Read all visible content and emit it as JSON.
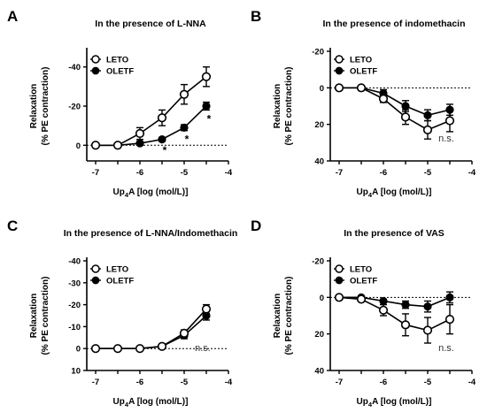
{
  "chart_data": [
    {
      "type": "line",
      "panel": "A",
      "title": "In the presence of L-NNA",
      "ylabel_line1": "Relaxation",
      "ylabel_line2": "(% PE contraction)",
      "xlabel_main": "Up",
      "xlabel_sub": "4",
      "xlabel_rest": "A [log (mol/L)]",
      "x_ticks": [
        -7,
        -6,
        -5,
        -4
      ],
      "x_tick_labels": [
        "-7",
        "-6",
        "-5",
        "-4"
      ],
      "y_ticks": [
        0,
        -20,
        -40
      ],
      "y_tick_labels": [
        "0",
        "-20",
        "-40"
      ],
      "ylim": [
        8,
        -48
      ],
      "xlim": [
        -7.2,
        -4
      ],
      "legend": [
        "LETO",
        "OLETF"
      ],
      "annotation": "",
      "significance_markers": [
        {
          "x": -5.5,
          "label": "*"
        },
        {
          "x": -5.0,
          "label": "*"
        },
        {
          "x": -4.5,
          "label": "*"
        }
      ],
      "series": [
        {
          "name": "LETO",
          "marker": "open",
          "x": [
            -7,
            -6.5,
            -6,
            -5.5,
            -5,
            -4.5
          ],
          "y": [
            0,
            0,
            -6,
            -14,
            -26,
            -35
          ],
          "err": [
            0.5,
            0.8,
            3,
            4,
            5,
            5
          ]
        },
        {
          "name": "OLETF",
          "marker": "filled",
          "x": [
            -7,
            -6.5,
            -6,
            -5.5,
            -5,
            -4.5
          ],
          "y": [
            0,
            0,
            -1,
            -3,
            -9,
            -20
          ],
          "err": [
            0.5,
            0.5,
            1,
            1,
            1.5,
            2
          ]
        }
      ]
    },
    {
      "type": "line",
      "panel": "B",
      "title": "In the presence of indomethacin",
      "ylabel_line1": "Relaxation",
      "ylabel_line2": "(% PE contraction)",
      "xlabel_main": "Up",
      "xlabel_sub": "4",
      "xlabel_rest": "A [log (mol/L)]",
      "x_ticks": [
        -7,
        -6,
        -5,
        -4
      ],
      "x_tick_labels": [
        "-7",
        "-6",
        "-5",
        "-4"
      ],
      "y_ticks": [
        -20,
        0,
        20,
        40
      ],
      "y_tick_labels": [
        "-20",
        "0",
        "20",
        "40"
      ],
      "ylim": [
        40,
        -20
      ],
      "xlim": [
        -7.2,
        -4
      ],
      "legend": [
        "LETO",
        "OLETF"
      ],
      "annotation": "n.s.",
      "significance_markers": [],
      "series": [
        {
          "name": "LETO",
          "marker": "open",
          "x": [
            -7,
            -6.5,
            -6,
            -5.5,
            -5,
            -4.5
          ],
          "y": [
            0,
            0,
            6,
            16,
            23,
            18
          ],
          "err": [
            0.5,
            0.8,
            2,
            4,
            5,
            6
          ]
        },
        {
          "name": "OLETF",
          "marker": "filled",
          "x": [
            -7,
            -6.5,
            -6,
            -5.5,
            -5,
            -4.5
          ],
          "y": [
            0,
            0,
            3,
            10,
            15,
            12
          ],
          "err": [
            0.5,
            0.5,
            2,
            3,
            3,
            3
          ]
        }
      ]
    },
    {
      "type": "line",
      "panel": "C",
      "title": "In the presence of L-NNA/Indomethacin",
      "ylabel_line1": "Relaxation",
      "ylabel_line2": "(% PE contraction)",
      "xlabel_main": "Up",
      "xlabel_sub": "4",
      "xlabel_rest": "A [log (mol/L)]",
      "x_ticks": [
        -7,
        -6,
        -5,
        -4
      ],
      "x_tick_labels": [
        "-7",
        "-6",
        "-5",
        "-4"
      ],
      "y_ticks": [
        -40,
        -30,
        -20,
        -10,
        0,
        10
      ],
      "y_tick_labels": [
        "-40",
        "-30",
        "-20",
        "-10",
        "0",
        "10"
      ],
      "ylim": [
        10,
        -40
      ],
      "xlim": [
        -7.2,
        -4
      ],
      "legend": [
        "LETO",
        "OLETF"
      ],
      "annotation": "n.s.",
      "significance_markers": [],
      "series": [
        {
          "name": "LETO",
          "marker": "open",
          "x": [
            -7,
            -6.5,
            -6,
            -5.5,
            -5,
            -4.5
          ],
          "y": [
            0,
            0,
            0,
            -1,
            -7,
            -18
          ],
          "err": [
            0.3,
            0.3,
            0.3,
            0.8,
            1.5,
            2
          ]
        },
        {
          "name": "OLETF",
          "marker": "filled",
          "x": [
            -7,
            -6.5,
            -6,
            -5.5,
            -5,
            -4.5
          ],
          "y": [
            0,
            0,
            0,
            -1,
            -6,
            -15
          ],
          "err": [
            0.3,
            0.3,
            0.3,
            0.8,
            1.5,
            2
          ]
        }
      ]
    },
    {
      "type": "line",
      "panel": "D",
      "title": "In the presence of VAS",
      "ylabel_line1": "Relaxation",
      "ylabel_line2": "(% PE contraction)",
      "xlabel_main": "Up",
      "xlabel_sub": "4",
      "xlabel_rest": "A [log (mol/L)]",
      "x_ticks": [
        -7,
        -6,
        -5,
        -4
      ],
      "x_tick_labels": [
        "-7",
        "-6",
        "-5",
        "-4"
      ],
      "y_ticks": [
        -20,
        0,
        20,
        40
      ],
      "y_tick_labels": [
        "-20",
        "0",
        "20",
        "40"
      ],
      "ylim": [
        40,
        -20
      ],
      "xlim": [
        -7.2,
        -4
      ],
      "legend": [
        "LETO",
        "OLETF"
      ],
      "annotation": "n.s.",
      "significance_markers": [],
      "series": [
        {
          "name": "LETO",
          "marker": "open",
          "x": [
            -7,
            -6.5,
            -6,
            -5.5,
            -5,
            -4.5
          ],
          "y": [
            0,
            1,
            7,
            15,
            18,
            12
          ],
          "err": [
            0.5,
            1,
            3,
            6,
            7,
            8
          ]
        },
        {
          "name": "OLETF",
          "marker": "filled",
          "x": [
            -7,
            -6.5,
            -6,
            -5.5,
            -5,
            -4.5
          ],
          "y": [
            0,
            0,
            2,
            4,
            5,
            0
          ],
          "err": [
            0.5,
            0.5,
            1,
            2,
            3,
            3
          ]
        }
      ]
    }
  ]
}
